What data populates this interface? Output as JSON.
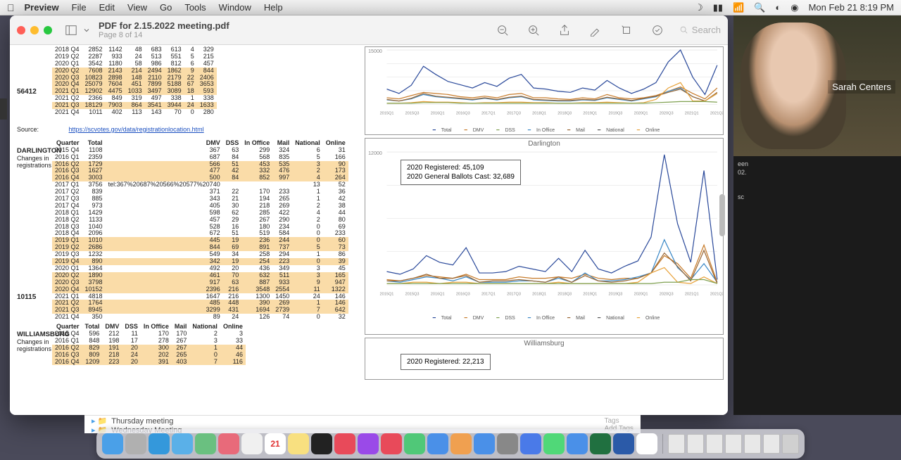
{
  "menubar": {
    "app": "Preview",
    "items": [
      "File",
      "Edit",
      "View",
      "Go",
      "Tools",
      "Window",
      "Help"
    ],
    "clock": "Mon Feb 21  8:19 PM"
  },
  "window": {
    "title": "PDF for 2.15.2022 meeting.pdf",
    "sub": "Page 8 of 14",
    "search_placeholder": "Search"
  },
  "source": {
    "label": "Source:",
    "url": "https://scvotes.gov/data/registrationlocation.html"
  },
  "table1_highlight_rows": [
    5,
    6,
    7,
    8,
    14,
    15,
    17,
    19,
    20,
    21,
    23,
    24
  ],
  "table1": {
    "big_total": "56412",
    "rows": [
      [
        "2018 Q4",
        "2852",
        "1142",
        "48",
        "683",
        "613",
        "4",
        "329"
      ],
      [
        "2019 Q2",
        "2287",
        "933",
        "24",
        "513",
        "551",
        "5",
        "215"
      ],
      [
        "2020 Q1",
        "3542",
        "1180",
        "58",
        "986",
        "812",
        "6",
        "457"
      ],
      [
        "2020 Q2",
        "7608",
        "2143",
        "214",
        "2494",
        "1862",
        "9",
        "844"
      ],
      [
        "2020 Q3",
        "10823",
        "2898",
        "148",
        "2110",
        "2179",
        "22",
        "2406"
      ],
      [
        "2020 Q4",
        "25079",
        "7604",
        "451",
        "7899",
        "5188",
        "67",
        "3653"
      ],
      [
        "2021 Q1",
        "12902",
        "4475",
        "1033",
        "3497",
        "3089",
        "18",
        "593"
      ],
      [
        "2021 Q2",
        "2366",
        "849",
        "319",
        "497",
        "338",
        "1",
        "338"
      ],
      [
        "2021 Q3",
        "18129",
        "7903",
        "864",
        "3541",
        "3944",
        "24",
        "1633"
      ],
      [
        "2021 Q4",
        "1011",
        "402",
        "113",
        "143",
        "70",
        "0",
        "280"
      ]
    ]
  },
  "darlington": {
    "header": [
      "Quarter",
      "Total",
      "DMV",
      "DSS",
      "In Office",
      "Mail",
      "National",
      "Online"
    ],
    "label": "DARLINGTON",
    "sub": [
      "Changes in",
      "registrations"
    ],
    "big_total": "10115",
    "hl_rows": [
      2,
      3,
      4,
      13,
      14,
      16,
      18,
      19,
      20,
      22,
      23
    ],
    "rows": [
      [
        "2015 Q4",
        "1108",
        "367",
        "63",
        "299",
        "324",
        "6",
        "31"
      ],
      [
        "2016 Q1",
        "2359",
        "687",
        "84",
        "568",
        "835",
        "5",
        "166"
      ],
      [
        "2016 Q2",
        "1729",
        "566",
        "51",
        "453",
        "535",
        "3",
        "90"
      ],
      [
        "2016 Q3",
        "1627",
        "477",
        "42",
        "332",
        "476",
        "2",
        "173"
      ],
      [
        "2016 Q4",
        "3003",
        "500",
        "84",
        "852",
        "997",
        "4",
        "264"
      ],
      [
        "2017 Q1",
        "3756",
        "tel:367%20687%20566%20577%20740",
        "",
        "",
        "",
        "13",
        "52"
      ],
      [
        "2017 Q2",
        "839",
        "371",
        "22",
        "170",
        "233",
        "1",
        "36"
      ],
      [
        "2017 Q3",
        "885",
        "343",
        "21",
        "194",
        "265",
        "1",
        "42"
      ],
      [
        "2017 Q4",
        "973",
        "405",
        "30",
        "218",
        "269",
        "2",
        "38"
      ],
      [
        "2018 Q1",
        "1429",
        "598",
        "62",
        "285",
        "422",
        "4",
        "44"
      ],
      [
        "2018 Q2",
        "1133",
        "457",
        "29",
        "267",
        "290",
        "2",
        "80"
      ],
      [
        "2018 Q3",
        "1040",
        "528",
        "16",
        "180",
        "234",
        "0",
        "69"
      ],
      [
        "2018 Q4",
        "2096",
        "672",
        "51",
        "519",
        "584",
        "0",
        "233"
      ],
      [
        "2019 Q1",
        "1010",
        "445",
        "19",
        "236",
        "244",
        "0",
        "60"
      ],
      [
        "2019 Q2",
        "2686",
        "844",
        "69",
        "891",
        "737",
        "5",
        "73"
      ],
      [
        "2019 Q3",
        "1232",
        "549",
        "34",
        "258",
        "294",
        "1",
        "86"
      ],
      [
        "2019 Q4",
        "890",
        "342",
        "19",
        "254",
        "223",
        "0",
        "39"
      ],
      [
        "2020 Q1",
        "1364",
        "492",
        "20",
        "436",
        "349",
        "3",
        "45"
      ],
      [
        "2020 Q2",
        "1890",
        "461",
        "70",
        "632",
        "511",
        "3",
        "165"
      ],
      [
        "2020 Q3",
        "3798",
        "917",
        "63",
        "887",
        "933",
        "9",
        "947"
      ],
      [
        "2020 Q4",
        "10152",
        "2396",
        "216",
        "3548",
        "2554",
        "11",
        "1322"
      ],
      [
        "2021 Q1",
        "4818",
        "1647",
        "216",
        "1300",
        "1450",
        "24",
        "146"
      ],
      [
        "2021 Q2",
        "1764",
        "485",
        "448",
        "390",
        "269",
        "1",
        "146"
      ],
      [
        "2021 Q3",
        "8945",
        "3299",
        "431",
        "1694",
        "2739",
        "7",
        "642"
      ],
      [
        "2021 Q4",
        "350",
        "89",
        "24",
        "126",
        "74",
        "0",
        "32"
      ]
    ]
  },
  "darlington_big_total_row": 21,
  "williamsburg": {
    "label": "WILLIAMSBURG",
    "sub": [
      "Changes in",
      "registrations"
    ],
    "header": [
      "Quarter",
      "Total",
      "DMV",
      "DSS",
      "In Office",
      "Mail",
      "National",
      "Online"
    ],
    "rows": [
      [
        "2015 Q4",
        "596",
        "212",
        "11",
        "170",
        "170",
        "2",
        "3"
      ],
      [
        "2016 Q1",
        "848",
        "198",
        "17",
        "278",
        "267",
        "3",
        "33"
      ],
      [
        "2016 Q2",
        "829",
        "191",
        "20",
        "300",
        "267",
        "1",
        "44"
      ],
      [
        "2016 Q3",
        "809",
        "218",
        "24",
        "202",
        "265",
        "0",
        "46"
      ],
      [
        "2016 Q4",
        "1209",
        "223",
        "20",
        "391",
        "403",
        "7",
        "116"
      ]
    ],
    "hl_rows": [
      2,
      3,
      4
    ]
  },
  "chart_top": {
    "x_labels": [
      "2015 Q1",
      "2015 Q3",
      "2016 Q1",
      "2016 Q3",
      "2017 Q1",
      "2017 Q3",
      "2018 Q1",
      "2018 Q3",
      "2019 Q1",
      "2019 Q3",
      "2020 Q1",
      "2020 Q3",
      "2021 Q1",
      "2021 Q3"
    ],
    "y_label": "15000",
    "legend": [
      "Total",
      "DMV",
      "DSS",
      "In Office",
      "Mail",
      "National",
      "Online"
    ],
    "colors": {
      "total": "#2b4a9b",
      "dmv": "#c77b2a",
      "dss": "#7fa050",
      "inoffice": "#3b89c7",
      "mail": "#996633",
      "national": "#555",
      "online": "#e8a23a"
    },
    "series": {
      "total": [
        28,
        20,
        35,
        70,
        55,
        42,
        36,
        30,
        40,
        33,
        48,
        55,
        30,
        28,
        24,
        22,
        30,
        26,
        44,
        30,
        20,
        28,
        40,
        78,
        100,
        50,
        18,
        72
      ],
      "dmv": [
        12,
        10,
        16,
        22,
        20,
        18,
        14,
        12,
        15,
        12,
        18,
        20,
        12,
        12,
        10,
        9,
        12,
        10,
        18,
        12,
        10,
        12,
        16,
        24,
        32,
        20,
        10,
        30
      ],
      "inoffice": [
        8,
        6,
        10,
        18,
        14,
        12,
        10,
        8,
        11,
        8,
        12,
        14,
        8,
        7,
        6,
        6,
        8,
        7,
        12,
        9,
        6,
        10,
        14,
        24,
        30,
        14,
        6,
        20
      ],
      "mail": [
        9,
        6,
        11,
        20,
        15,
        13,
        11,
        9,
        12,
        9,
        13,
        15,
        9,
        8,
        7,
        7,
        9,
        8,
        13,
        10,
        7,
        11,
        15,
        22,
        28,
        14,
        6,
        22
      ],
      "online": [
        2,
        2,
        3,
        5,
        4,
        4,
        3,
        2,
        3,
        3,
        4,
        4,
        3,
        3,
        2,
        2,
        3,
        3,
        4,
        3,
        2,
        3,
        9,
        30,
        40,
        6,
        6,
        20
      ],
      "dss": [
        2,
        2,
        2,
        3,
        3,
        3,
        2,
        2,
        2,
        2,
        2,
        2,
        2,
        2,
        2,
        2,
        2,
        2,
        2,
        2,
        2,
        2,
        3,
        4,
        5,
        5,
        5,
        4
      ]
    }
  },
  "chart_darlington": {
    "title": "Darlington",
    "y_label": "12000",
    "x_labels": [
      "2015 Q1",
      "2015 Q3",
      "2016 Q1",
      "2016 Q3",
      "2017 Q1",
      "2017 Q3",
      "2018 Q1",
      "2018 Q3",
      "2019 Q1",
      "2019 Q3",
      "2020 Q1",
      "2020 Q3",
      "2021 Q1",
      "2021 Q3"
    ],
    "callout": {
      "line1": "2020 Registered: 45,109",
      "line2": "2020 General Ballots Cast: 32,689"
    },
    "series": {
      "total": [
        10,
        8,
        12,
        22,
        17,
        15,
        28,
        9,
        9,
        10,
        14,
        12,
        10,
        20,
        10,
        26,
        12,
        9,
        14,
        18,
        36,
        98,
        46,
        17,
        86,
        4
      ],
      "dmv": [
        4,
        3,
        5,
        7,
        6,
        5,
        8,
        4,
        4,
        4,
        6,
        5,
        5,
        6,
        5,
        8,
        5,
        4,
        5,
        5,
        9,
        22,
        16,
        5,
        30,
        2
      ],
      "inoffice": [
        3,
        2,
        4,
        6,
        5,
        3,
        6,
        2,
        2,
        2,
        3,
        3,
        2,
        5,
        2,
        9,
        3,
        3,
        4,
        6,
        9,
        34,
        13,
        4,
        16,
        2
      ],
      "mail": [
        3,
        3,
        5,
        8,
        5,
        5,
        7,
        2,
        3,
        3,
        4,
        3,
        2,
        6,
        2,
        7,
        3,
        2,
        3,
        5,
        9,
        24,
        14,
        3,
        26,
        1
      ],
      "online": [
        1,
        1,
        2,
        2,
        1,
        2,
        2,
        1,
        1,
        1,
        1,
        1,
        1,
        2,
        1,
        1,
        1,
        1,
        1,
        2,
        9,
        13,
        2,
        1,
        6,
        1
      ],
      "dss": [
        1,
        1,
        1,
        1,
        1,
        1,
        1,
        1,
        1,
        1,
        1,
        1,
        1,
        1,
        1,
        1,
        1,
        1,
        1,
        1,
        1,
        2,
        2,
        4,
        4,
        1
      ]
    }
  },
  "chart_williamsburg": {
    "title": "Williamsburg",
    "callout": {
      "line1": "2020 Registered: 22,213"
    }
  },
  "video": {
    "name": "Sarah Centers"
  },
  "side_text": [
    "een",
    "02.",
    "",
    "sc",
    "out"
  ],
  "finder": {
    "row1": "Thursday meeting",
    "row2": "Wednesday Meeting",
    "tags": "Tags",
    "addtags": "Add Tags"
  },
  "dock_apps": [
    {
      "n": "finder",
      "c": "#4aa0e8"
    },
    {
      "n": "launchpad",
      "c": "#b0b0b0"
    },
    {
      "n": "safari",
      "c": "#3498db"
    },
    {
      "n": "mail",
      "c": "#5ab0e8"
    },
    {
      "n": "maps",
      "c": "#6ac080"
    },
    {
      "n": "photos",
      "c": "#e86a7a"
    },
    {
      "n": "reminders",
      "c": "#f0f0f0"
    },
    {
      "n": "calendar",
      "c": "#ffffff",
      "t": "21",
      "tc": "#e03030"
    },
    {
      "n": "notes",
      "c": "#f8e080"
    },
    {
      "n": "tv",
      "c": "#222"
    },
    {
      "n": "music",
      "c": "#e84a5a"
    },
    {
      "n": "podcasts",
      "c": "#9a4ae8"
    },
    {
      "n": "news",
      "c": "#e84a5a"
    },
    {
      "n": "numbers",
      "c": "#50c878"
    },
    {
      "n": "keynote",
      "c": "#4a90e8"
    },
    {
      "n": "pages",
      "c": "#f0a050"
    },
    {
      "n": "appstore",
      "c": "#4a90e8"
    },
    {
      "n": "sysprefs",
      "c": "#888"
    },
    {
      "n": "app1",
      "c": "#4a7ae8"
    },
    {
      "n": "messages",
      "c": "#50d878"
    },
    {
      "n": "zoom",
      "c": "#4a90e8"
    },
    {
      "n": "excel",
      "c": "#207040"
    },
    {
      "n": "word",
      "c": "#2b5aa8"
    },
    {
      "n": "preview",
      "c": "#ffffff"
    }
  ],
  "dock_docs": [
    {
      "n": "doc1",
      "c": "#e8e8e8"
    },
    {
      "n": "doc2",
      "c": "#e8e8e8"
    },
    {
      "n": "doc3",
      "c": "#e8e8e8"
    },
    {
      "n": "doc4",
      "c": "#e8e8e8"
    },
    {
      "n": "doc5",
      "c": "#e8e8e8"
    },
    {
      "n": "doc6",
      "c": "#e8e8e8"
    },
    {
      "n": "trash",
      "c": "#d0d0d0"
    }
  ],
  "palette": {
    "highlight": "#fadca8"
  }
}
